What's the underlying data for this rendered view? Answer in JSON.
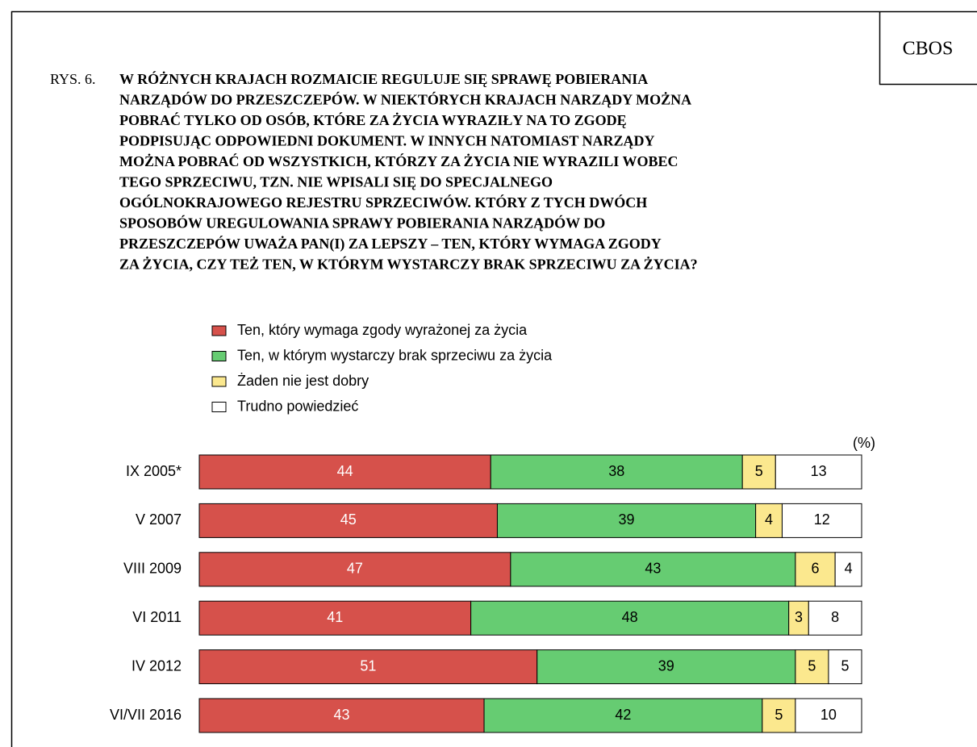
{
  "chart_data": {
    "type": "stacked_bar_horizontal",
    "source": "CBOS",
    "figure_label": "RYS. 6.",
    "title": [
      "W RÓŻNYCH KRAJACH ROZMAICIE REGULUJE SIĘ SPRAWĘ POBIERANIA",
      "NARZĄDÓW DO PRZESZCZEPÓW. W NIEKTÓRYCH KRAJACH NARZĄDY MOŻNA",
      "POBRAĆ TYLKO OD OSÓB, KTÓRE ZA ŻYCIA WYRAZIŁY NA TO ZGODĘ",
      "PODPISUJĄC ODPOWIEDNI DOKUMENT. W INNYCH NATOMIAST NARZĄDY",
      "MOŻNA POBRAĆ OD WSZYSTKICH, KTÓRZY ZA ŻYCIA NIE WYRAZILI WOBEC",
      "TEGO SPRZECIWU, TZN. NIE WPISALI SIĘ DO SPECJALNEGO",
      "OGÓLNOKRAJOWEGO REJESTRU SPRZECIWÓW. KTÓRY Z TYCH DWÓCH",
      "SPOSOBÓW UREGULOWANIA SPRAWY POBIERANIA NARZĄDÓW DO",
      "PRZESZCZEPÓW UWAŻA PAN(I) ZA LEPSZY – TEN, KTÓRY WYMAGA ZGODY",
      "ZA ŻYCIA, CZY TEŻ TEN, W KTÓRYM WYSTARCZY BRAK SPRZECIWU ZA ŻYCIA?"
    ],
    "unit_label": "(%)",
    "categories": [
      "IX 2005*",
      "V 2007",
      "VIII 2009",
      "VI 2011",
      "IV 2012",
      "VI/VII 2016"
    ],
    "xlim": [
      0,
      100
    ],
    "series": [
      {
        "name": "Ten, który wymaga zgody wyrażonej za życia",
        "color": "#d6514b",
        "label_color": "#ffffff",
        "values": [
          44,
          45,
          47,
          41,
          51,
          43
        ]
      },
      {
        "name": "Ten, w którym wystarczy brak sprzeciwu za życia",
        "color": "#66cc72",
        "label_color": "#000000",
        "values": [
          38,
          39,
          43,
          48,
          39,
          42
        ]
      },
      {
        "name": "Żaden nie jest dobry",
        "color": "#fbe88e",
        "label_color": "#000000",
        "values": [
          5,
          4,
          6,
          3,
          5,
          5
        ]
      },
      {
        "name": "Trudno powiedzieć",
        "color": "#ffffff",
        "label_color": "#000000",
        "values": [
          13,
          12,
          4,
          8,
          5,
          10
        ]
      }
    ]
  }
}
